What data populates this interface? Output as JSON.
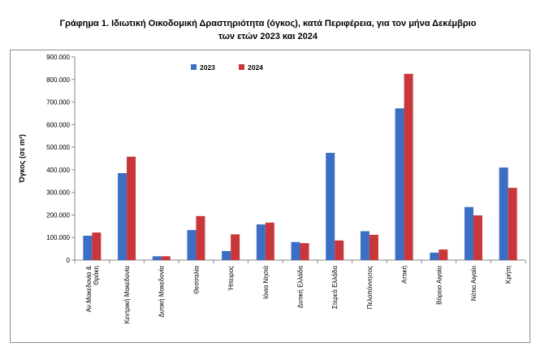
{
  "title_line1": "Γράφημα 1.  Ιδιωτική Οικοδομική Δραστηριότητα (όγκος), κατά Περιφέρεια, για τον μήνα Δεκέμβριο",
  "title_line2": "των ετών 2023 και 2024",
  "chart_data": {
    "type": "bar",
    "title": "Γράφημα 1.  Ιδιωτική Οικοδομική Δραστηριότητα (όγκος), κατά Περιφέρεια, για τον μήνα Δεκέμβριο των ετών 2023 και 2024",
    "xlabel": "",
    "ylabel": "Όγκος (σε m³)",
    "ylim": [
      0,
      900000
    ],
    "yticks": [
      0,
      100000,
      200000,
      300000,
      400000,
      500000,
      600000,
      700000,
      800000,
      900000
    ],
    "ytick_labels": [
      "0",
      "100.000",
      "200.000",
      "300.000",
      "400.000",
      "500.000",
      "600.000",
      "700.000",
      "800.000",
      "900.000"
    ],
    "grid": false,
    "legend_position": "top-left",
    "categories": [
      [
        "Αν.Μακεδονία &",
        "Θράκη"
      ],
      [
        "Κεντρική Μακεδονία"
      ],
      [
        "Δυτική Μακεδονία"
      ],
      [
        "Θεσσαλία"
      ],
      [
        "Ήπειρος"
      ],
      [
        "Ιόνια Νησιά"
      ],
      [
        "Δυτική Ελλάδα"
      ],
      [
        "Στερεά Ελλάδα"
      ],
      [
        "Πελοπόννησος"
      ],
      [
        "Αττική"
      ],
      [
        "Βόρειο Αιγαίο"
      ],
      [
        "Νότιο Αιγαίο"
      ],
      [
        "Κρήτη"
      ]
    ],
    "series": [
      {
        "name": "2023",
        "color": "#3c6fc4",
        "values": [
          108000,
          385000,
          17000,
          133000,
          40000,
          158000,
          80000,
          475000,
          128000,
          672000,
          33000,
          235000,
          410000
        ]
      },
      {
        "name": "2024",
        "color": "#c8373a",
        "values": [
          122000,
          458000,
          17000,
          195000,
          114000,
          166000,
          75000,
          87000,
          112000,
          825000,
          47000,
          198000,
          320000
        ]
      }
    ]
  }
}
